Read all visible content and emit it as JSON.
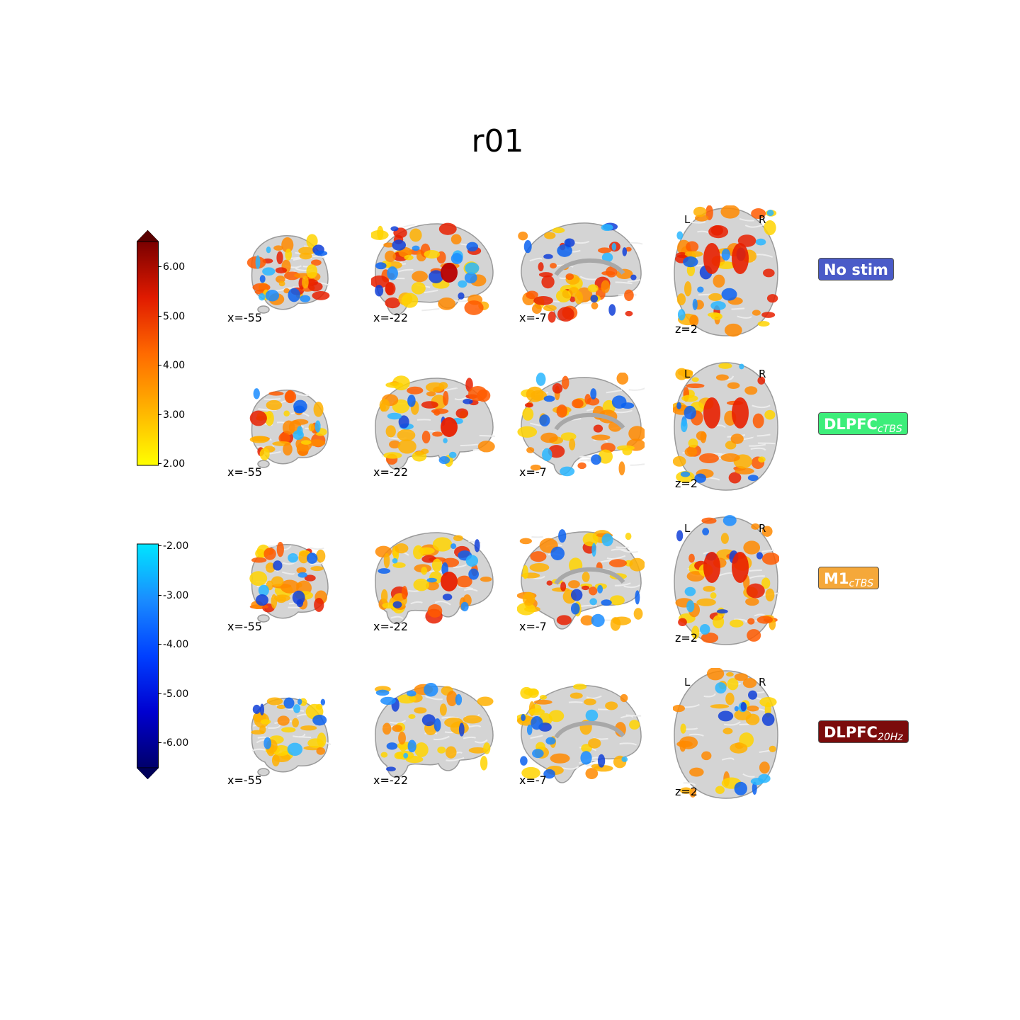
{
  "title": "r01",
  "colorbar_positive": {
    "ticks": [
      "6.00",
      "5.00",
      "4.00",
      "3.00",
      "2.00"
    ],
    "colors": [
      "#7a0000",
      "#e01a00",
      "#ff6a00",
      "#ffb300",
      "#ffff00"
    ]
  },
  "colorbar_negative": {
    "ticks": [
      "-2.00",
      "-3.00",
      "-4.00",
      "-5.00",
      "-6.00"
    ],
    "colors": [
      "#00e5ff",
      "#1a8cff",
      "#0040ff",
      "#0000d0",
      "#00006b"
    ]
  },
  "rows": [
    {
      "label_main": "No stim",
      "label_sub": "",
      "label_color": "#4a5bc8",
      "coords": [
        "x=-55",
        "x=-22",
        "x=-7",
        "z=2"
      ],
      "left": "L",
      "right": "R"
    },
    {
      "label_main": "DLPFC",
      "label_sub": "cTBS",
      "label_color": "#3dee7a",
      "coords": [
        "x=-55",
        "x=-22",
        "x=-7",
        "z=2"
      ],
      "left": "L",
      "right": "R"
    },
    {
      "label_main": "M1",
      "label_sub": "cTBS",
      "label_color": "#f5a83a",
      "coords": [
        "x=-55",
        "x=-22",
        "x=-7",
        "z=2"
      ],
      "left": "L",
      "right": "R"
    },
    {
      "label_main": "DLPFC",
      "label_sub": "20Hz",
      "label_color": "#7b0c0c",
      "coords": [
        "x=-55",
        "x=-22",
        "x=-7",
        "z=2"
      ],
      "left": "L",
      "right": "R"
    }
  ]
}
